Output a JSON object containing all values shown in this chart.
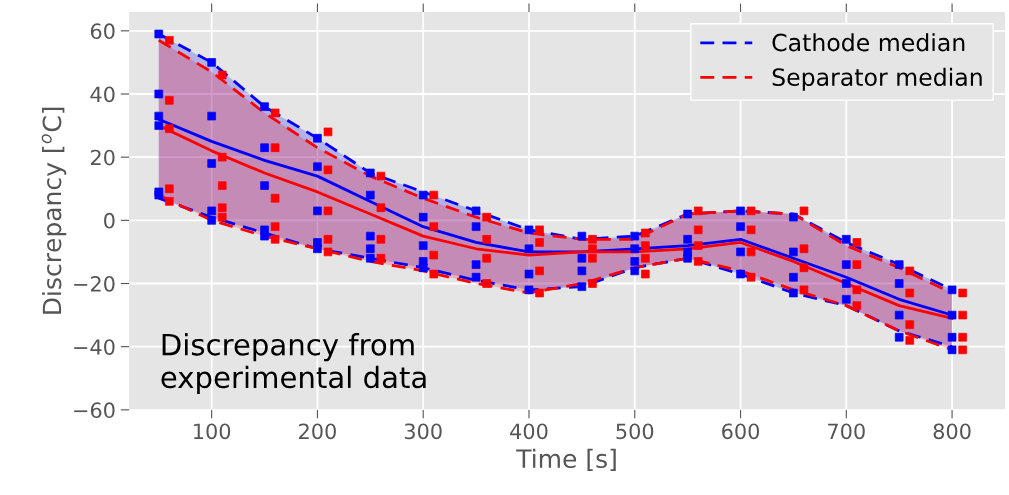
{
  "chart_data": {
    "type": "line",
    "xlabel": "Time [s]",
    "ylabel": "Discrepancy [$^{o}$C]",
    "xlim": [
      22,
      850
    ],
    "ylim": [
      -60,
      66
    ],
    "xticks": [
      100,
      200,
      300,
      400,
      500,
      600,
      700,
      800
    ],
    "yticks": [
      -60,
      -40,
      -20,
      0,
      20,
      40,
      60
    ],
    "grid": true,
    "legend": "top right",
    "line_style": "solid",
    "annotations": [
      "Discrepancy from\nexperimental data"
    ],
    "series": [
      {
        "name": "Cathode median",
        "color": "#0000ff",
        "x": [
          50,
          100,
          150,
          200,
          250,
          300,
          350,
          400,
          450,
          500,
          550,
          600,
          650,
          700,
          750,
          800
        ],
        "values": [
          32,
          25,
          19,
          14,
          6,
          -2,
          -7,
          -10,
          -10,
          -9,
          -8,
          -6,
          -12,
          -18,
          -25,
          -30
        ],
        "lower": [
          7,
          1,
          -4,
          -9,
          -12,
          -15,
          -19,
          -22,
          -21,
          -15,
          -12,
          -17,
          -23,
          -27,
          -35,
          -40
        ],
        "upper": [
          59,
          50,
          36,
          26,
          15,
          9,
          3,
          -3,
          -6,
          -5,
          2,
          3,
          2,
          -7,
          -14,
          -22
        ]
      },
      {
        "name": "Separator median",
        "color": "#ff0000",
        "x": [
          50,
          100,
          150,
          200,
          250,
          300,
          350,
          400,
          450,
          500,
          550,
          600,
          650,
          700,
          750,
          800
        ],
        "values": [
          30,
          22,
          15,
          9,
          2,
          -5,
          -9,
          -11,
          -10,
          -10,
          -9,
          -7,
          -13,
          -20,
          -27,
          -31
        ],
        "lower": [
          8,
          0,
          -5,
          -9,
          -13,
          -16,
          -20,
          -23,
          -20,
          -15,
          -12,
          -16,
          -22,
          -27,
          -35,
          -41
        ],
        "upper": [
          57,
          47,
          34,
          23,
          14,
          7,
          1,
          -4,
          -6,
          -6,
          2,
          3,
          2,
          -8,
          -15,
          -23
        ]
      },
      {
        "type": "line",
        "line_style": "dashed",
        "color": "#0000ff",
        "x": [
          50,
          100,
          150,
          200,
          250,
          300,
          350,
          400,
          450,
          500,
          550,
          600,
          650,
          700,
          750,
          800
        ],
        "values": [
          7,
          1,
          -4,
          -9,
          -12,
          -15,
          -19,
          -22,
          -21,
          -15,
          -12,
          -17,
          -23,
          -27,
          -35,
          -40
        ]
      },
      {
        "type": "line",
        "line_style": "dashed",
        "color": "#0000ff",
        "x": [
          50,
          100,
          150,
          200,
          250,
          300,
          350,
          400,
          450,
          500,
          550,
          600,
          650,
          700,
          750,
          800
        ],
        "values": [
          59,
          50,
          36,
          26,
          15,
          9,
          3,
          -3,
          -6,
          -5,
          2,
          3,
          2,
          -7,
          -14,
          -22
        ]
      },
      {
        "type": "line",
        "line_style": "dashed",
        "color": "#ff0000",
        "x": [
          50,
          100,
          150,
          200,
          250,
          300,
          350,
          400,
          450,
          500,
          550,
          600,
          650,
          700,
          750,
          800
        ],
        "values": [
          8,
          0,
          -5,
          -9,
          -13,
          -16,
          -20,
          -23,
          -20,
          -15,
          -12,
          -16,
          -22,
          -27,
          -35,
          -41
        ]
      },
      {
        "type": "line",
        "line_style": "dashed",
        "color": "#ff0000",
        "x": [
          50,
          100,
          150,
          200,
          250,
          300,
          350,
          400,
          450,
          500,
          550,
          600,
          650,
          700,
          750,
          800
        ],
        "values": [
          57,
          47,
          34,
          23,
          14,
          7,
          1,
          -4,
          -6,
          -6,
          2,
          3,
          2,
          -8,
          -15,
          -23
        ]
      },
      {
        "type": "scatter",
        "color": "#0000ff",
        "marker": "square",
        "x": [
          50,
          50,
          50,
          50,
          50,
          50,
          100,
          100,
          100,
          100,
          100,
          150,
          150,
          150,
          150,
          150,
          200,
          200,
          200,
          200,
          200,
          250,
          250,
          250,
          250,
          250,
          300,
          300,
          300,
          300,
          300,
          350,
          350,
          350,
          350,
          400,
          400,
          400,
          400,
          450,
          450,
          450,
          450,
          500,
          500,
          500,
          500,
          550,
          550,
          550,
          550,
          600,
          600,
          600,
          600,
          650,
          650,
          650,
          650,
          700,
          700,
          700,
          700,
          750,
          750,
          750,
          750,
          800,
          800,
          800,
          800
        ],
        "values": [
          59,
          40,
          33,
          30,
          9,
          8,
          50,
          33,
          18,
          3,
          0,
          36,
          23,
          11,
          -3,
          -5,
          26,
          17,
          3,
          -7,
          -9,
          15,
          8,
          -5,
          -9,
          -12,
          8,
          1,
          -8,
          -13,
          -15,
          3,
          -2,
          -14,
          -18,
          -3,
          -9,
          -17,
          -22,
          -5,
          -12,
          -16,
          -21,
          -5,
          -9,
          -13,
          -16,
          2,
          -6,
          -10,
          -12,
          3,
          -2,
          -10,
          -17,
          1,
          -10,
          -18,
          -23,
          -6,
          -14,
          -20,
          -25,
          -14,
          -20,
          -30,
          -37,
          -22,
          -30,
          -37,
          -41
        ]
      },
      {
        "type": "scatter",
        "color": "#ff0000",
        "marker": "square",
        "x": [
          60,
          60,
          60,
          60,
          60,
          110,
          110,
          110,
          110,
          110,
          160,
          160,
          160,
          160,
          160,
          210,
          210,
          210,
          210,
          210,
          260,
          260,
          260,
          260,
          310,
          310,
          310,
          310,
          360,
          360,
          360,
          360,
          410,
          410,
          410,
          410,
          460,
          460,
          460,
          460,
          510,
          510,
          510,
          510,
          560,
          560,
          560,
          560,
          610,
          610,
          610,
          610,
          660,
          660,
          660,
          660,
          710,
          710,
          710,
          710,
          760,
          760,
          760,
          760,
          810,
          810,
          810,
          810
        ],
        "values": [
          57,
          38,
          29,
          10,
          6,
          46,
          20,
          11,
          4,
          1,
          34,
          23,
          7,
          -2,
          -6,
          28,
          16,
          3,
          -6,
          -10,
          14,
          4,
          -6,
          -12,
          8,
          -2,
          -11,
          -17,
          1,
          -6,
          -12,
          -20,
          -3,
          -7,
          -16,
          -23,
          -6,
          -9,
          -12,
          -20,
          -4,
          -8,
          -12,
          -17,
          3,
          -3,
          -8,
          -13,
          3,
          -3,
          -10,
          -18,
          3,
          -9,
          -15,
          -22,
          -7,
          -14,
          -22,
          -27,
          -16,
          -23,
          -33,
          -38,
          -23,
          -30,
          -37,
          -41
        ]
      }
    ]
  }
}
